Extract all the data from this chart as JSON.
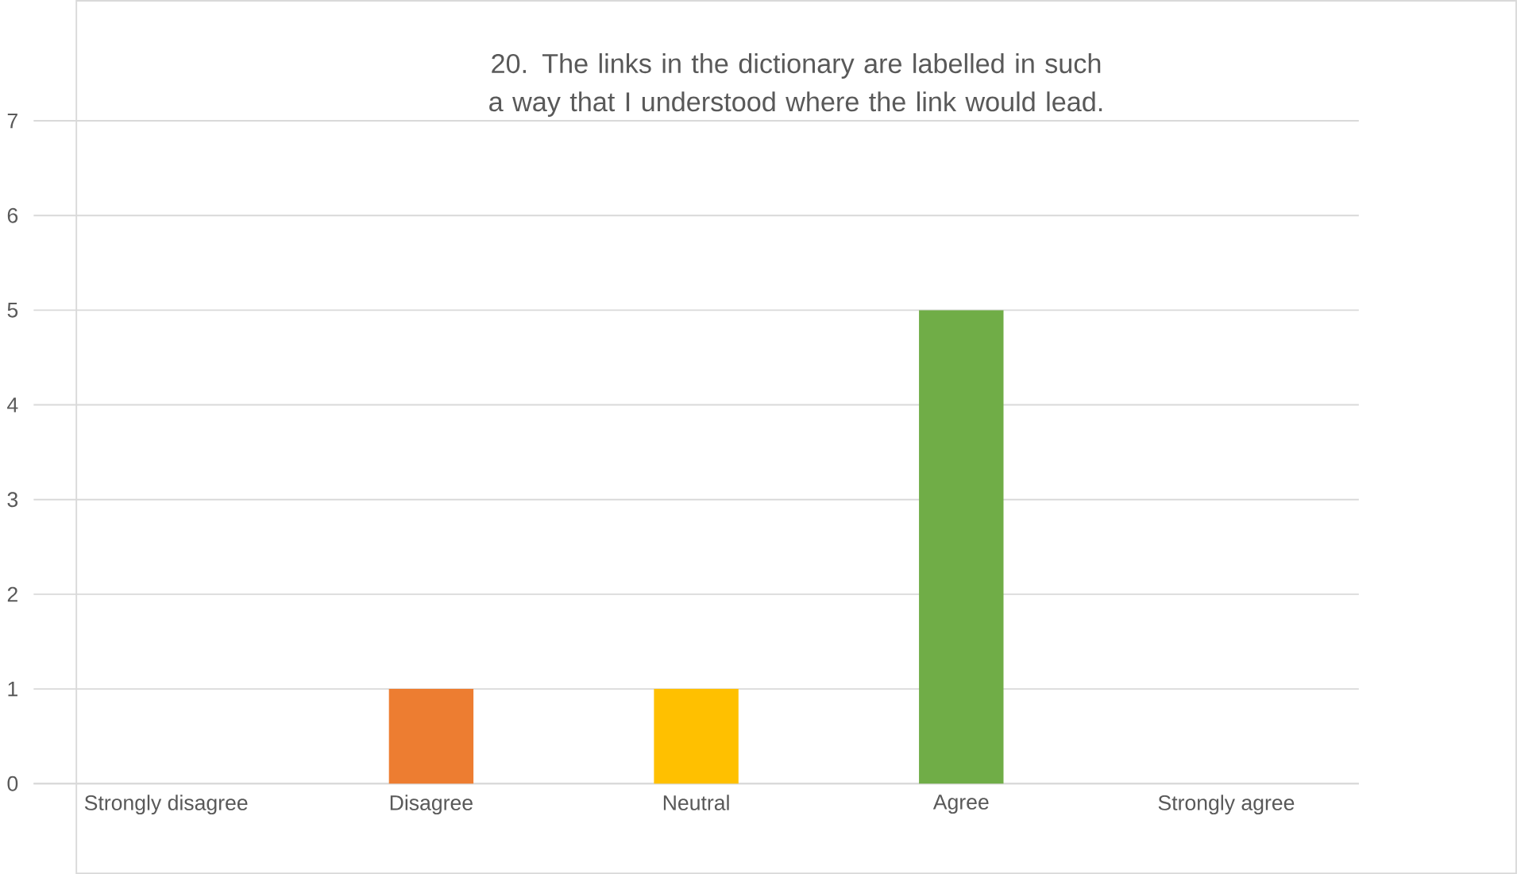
{
  "chart_data": {
    "type": "bar",
    "title": "20. The links in the dictionary are labelled in such a way that I understood where the link would lead.",
    "categories": [
      "Strongly disagree",
      "Disagree",
      "Neutral",
      "Agree",
      "Strongly agree"
    ],
    "values": [
      0,
      1,
      1,
      5,
      0
    ],
    "colors": [
      "#4472c4",
      "#ed7d31",
      "#ffc000",
      "#70ad47",
      "#5b9bd5"
    ],
    "ylim": [
      0,
      7
    ],
    "yticks": [
      0,
      1,
      2,
      3,
      4,
      5,
      6,
      7
    ],
    "grid": "y"
  }
}
